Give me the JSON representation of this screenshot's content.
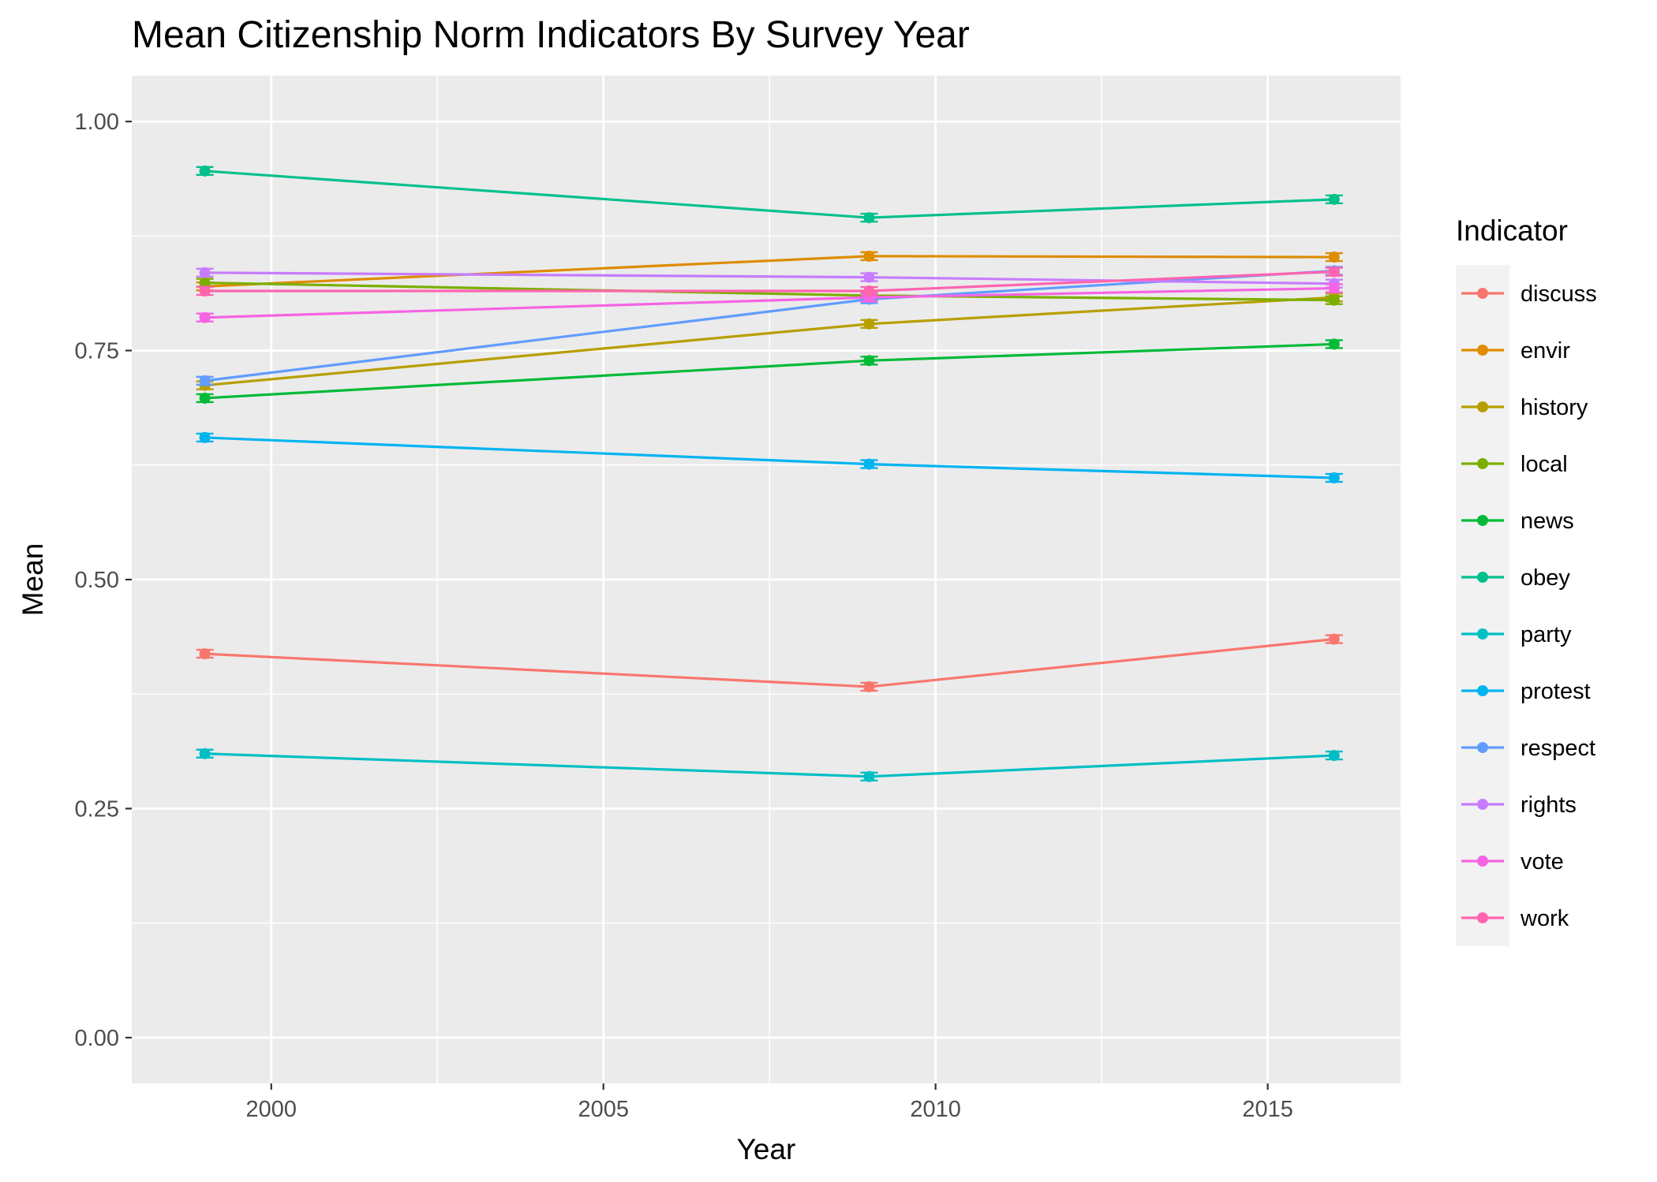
{
  "chart_data": {
    "type": "line",
    "title": "Mean Citizenship Norm Indicators By Survey Year",
    "xlabel": "Year",
    "ylabel": "Mean",
    "x": [
      1999,
      2009,
      2016
    ],
    "xlim": [
      1997.9,
      2017.0
    ],
    "ylim": [
      -0.05,
      1.05
    ],
    "x_ticks": [
      2000,
      2005,
      2010,
      2015
    ],
    "x_tick_labels": [
      "2000",
      "2005",
      "2010",
      "2015"
    ],
    "y_ticks": [
      0.0,
      0.25,
      0.5,
      0.75,
      1.0
    ],
    "y_tick_labels": [
      "0.00",
      "0.25",
      "0.50",
      "0.75",
      "1.00"
    ],
    "grid": true,
    "background": "#ebebeb",
    "legend": {
      "title": "Indicator",
      "position": "right"
    },
    "series": [
      {
        "name": "discuss",
        "color": "#F8766D",
        "values": [
          0.419,
          0.383,
          0.435
        ]
      },
      {
        "name": "envir",
        "color": "#DE8C00",
        "values": [
          0.82,
          0.853,
          0.852
        ]
      },
      {
        "name": "history",
        "color": "#B79F00",
        "values": [
          0.712,
          0.779,
          0.808
        ]
      },
      {
        "name": "local",
        "color": "#7CAE00",
        "values": [
          0.824,
          0.81,
          0.805
        ]
      },
      {
        "name": "news",
        "color": "#00BA38",
        "values": [
          0.698,
          0.739,
          0.757
        ]
      },
      {
        "name": "obey",
        "color": "#00C08B",
        "values": [
          0.946,
          0.895,
          0.915
        ]
      },
      {
        "name": "party",
        "color": "#00BFC4",
        "values": [
          0.31,
          0.285,
          0.308
        ]
      },
      {
        "name": "protest",
        "color": "#00B4F0",
        "values": [
          0.655,
          0.626,
          0.611
        ]
      },
      {
        "name": "respect",
        "color": "#619CFF",
        "values": [
          0.717,
          0.806,
          0.837
        ]
      },
      {
        "name": "rights",
        "color": "#C77CFF",
        "values": [
          0.835,
          0.83,
          0.823
        ]
      },
      {
        "name": "vote",
        "color": "#F564E3",
        "values": [
          0.786,
          0.808,
          0.818
        ]
      },
      {
        "name": "work",
        "color": "#FF64B0",
        "values": [
          0.815,
          0.815,
          0.836
        ]
      }
    ]
  }
}
